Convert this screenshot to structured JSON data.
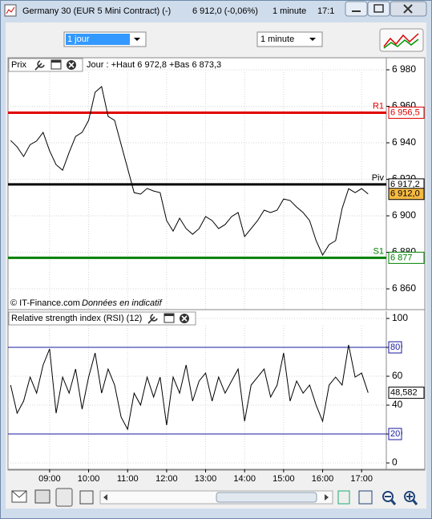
{
  "window": {
    "title": "Germany 30 (EUR 5 Mini Contract) (-)",
    "quote": "6 912,0 (-0,06%)",
    "interval": "1 minute",
    "time": "17:1"
  },
  "toolbar": {
    "period": "1 jour",
    "interval": "1 minute"
  },
  "chart_data": [
    {
      "type": "line",
      "title": "Prix",
      "subtitle": "Jour : +Haut 6 972,8 +Bas 6 873,3",
      "annotations": [
        "© IT-Finance.com",
        "Données en indicatif"
      ],
      "x": [
        "08:00",
        "08:10",
        "08:20",
        "08:30",
        "08:40",
        "08:50",
        "09:00",
        "09:10",
        "09:20",
        "09:30",
        "09:40",
        "09:50",
        "10:00",
        "10:10",
        "10:20",
        "10:30",
        "10:40",
        "10:50",
        "11:00",
        "11:10",
        "11:20",
        "11:30",
        "11:40",
        "11:50",
        "12:00",
        "12:10",
        "12:20",
        "12:30",
        "12:40",
        "12:50",
        "13:00",
        "13:10",
        "13:20",
        "13:30",
        "13:40",
        "13:50",
        "14:00",
        "14:10",
        "14:20",
        "14:30",
        "14:40",
        "14:50",
        "15:00",
        "15:10",
        "15:20",
        "15:30",
        "15:40",
        "15:50",
        "16:00",
        "16:10",
        "16:20",
        "16:30",
        "16:40",
        "16:50",
        "17:00",
        "17:10"
      ],
      "series": [
        {
          "color": "#000000",
          "values": [
            6941.3,
            6937.8,
            6932.5,
            6939,
            6941,
            6945.7,
            6935.6,
            6928,
            6925,
            6934.7,
            6943.5,
            6945.7,
            6952.3,
            6967.7,
            6970.8,
            6954.5,
            6952.3,
            6939.1,
            6926,
            6912.7,
            6911.9,
            6915,
            6913.6,
            6912.7,
            6897.4,
            6891.6,
            6898.7,
            6893,
            6889.9,
            6893,
            6899.6,
            6897.4,
            6893,
            6895.2,
            6899.6,
            6901.8,
            6888.6,
            6893,
            6897.4,
            6903.1,
            6901.8,
            6903.1,
            6909.2,
            6908.4,
            6904.8,
            6901.8,
            6897.4,
            6886.4,
            6878.5,
            6884.2,
            6886.4,
            6904,
            6914.9,
            6912.7,
            6914.9,
            6912.0
          ]
        }
      ],
      "levels": [
        {
          "label": "R1",
          "value": 6956.5,
          "value_label": "6 956,5",
          "color": "#e00000"
        },
        {
          "label": "Piv",
          "value": 6917.2,
          "value_label": "6 917,2",
          "color": "#000000"
        },
        {
          "label": "S1",
          "value": 6877,
          "value_label": "6 877",
          "color": "#008000"
        }
      ],
      "last": {
        "value": 6912.0,
        "label": "6 912,0",
        "color": "#f5b942"
      },
      "xlim": [
        "07:56",
        "17:38"
      ],
      "ylim": [
        6848.6,
        6986.6
      ],
      "yticks": [
        {
          "value": 6860,
          "label": "6 860"
        },
        {
          "value": 6880,
          "label": "6 880"
        },
        {
          "value": 6900,
          "label": "6 900"
        },
        {
          "value": 6920,
          "label": "6 920"
        },
        {
          "value": 6940,
          "label": "6 940"
        },
        {
          "value": 6960,
          "label": "6 960"
        },
        {
          "value": 6980,
          "label": "6 980"
        }
      ],
      "grid": true
    },
    {
      "type": "line",
      "title": "Relative strength index (RSI) (12)",
      "x": [
        "08:00",
        "08:10",
        "08:20",
        "08:30",
        "08:40",
        "08:50",
        "09:00",
        "09:10",
        "09:20",
        "09:30",
        "09:40",
        "09:50",
        "10:00",
        "10:10",
        "10:20",
        "10:30",
        "10:40",
        "10:50",
        "11:00",
        "11:10",
        "11:20",
        "11:30",
        "11:40",
        "11:50",
        "12:00",
        "12:10",
        "12:20",
        "12:30",
        "12:40",
        "12:50",
        "13:00",
        "13:10",
        "13:20",
        "13:30",
        "13:40",
        "13:50",
        "14:00",
        "14:10",
        "14:20",
        "14:30",
        "14:40",
        "14:50",
        "15:00",
        "15:10",
        "15:20",
        "15:30",
        "15:40",
        "15:50",
        "16:00",
        "16:10",
        "16:20",
        "16:30",
        "16:40",
        "16:50",
        "17:00",
        "17:10"
      ],
      "series": [
        {
          "color": "#000000",
          "values": [
            53.9,
            34.4,
            42.8,
            59.4,
            48.3,
            67.8,
            78.9,
            34.4,
            59.4,
            48.3,
            65,
            37.2,
            59.4,
            76.1,
            48.3,
            65,
            53.9,
            31.7,
            23.3,
            48.3,
            40,
            59.4,
            45.6,
            59.4,
            26.1,
            59.4,
            48.3,
            67.8,
            42.8,
            56.7,
            62.2,
            42.8,
            59.4,
            48.3,
            56.7,
            65,
            28.9,
            53.9,
            59.4,
            65,
            45.6,
            53.9,
            76.1,
            42.8,
            56.7,
            48.3,
            53.9,
            40,
            28.9,
            53.9,
            59.4,
            53.9,
            81.7,
            59.4,
            62.2,
            48.582
          ]
        }
      ],
      "levels": [
        {
          "value": 80,
          "color": "#1a1aa0"
        },
        {
          "value": 20,
          "color": "#1a1aa0"
        }
      ],
      "last": {
        "value": 48.582,
        "label": "48,582",
        "color": "#ffffff"
      },
      "xlim": [
        "07:56",
        "17:38"
      ],
      "ylim": [
        -4.4,
        105
      ],
      "xticks": [
        "09:00",
        "10:00",
        "11:00",
        "12:00",
        "13:00",
        "14:00",
        "15:00",
        "16:00",
        "17:00"
      ],
      "yticks": [
        0,
        20,
        40,
        60,
        80,
        100
      ],
      "grid": true
    }
  ]
}
